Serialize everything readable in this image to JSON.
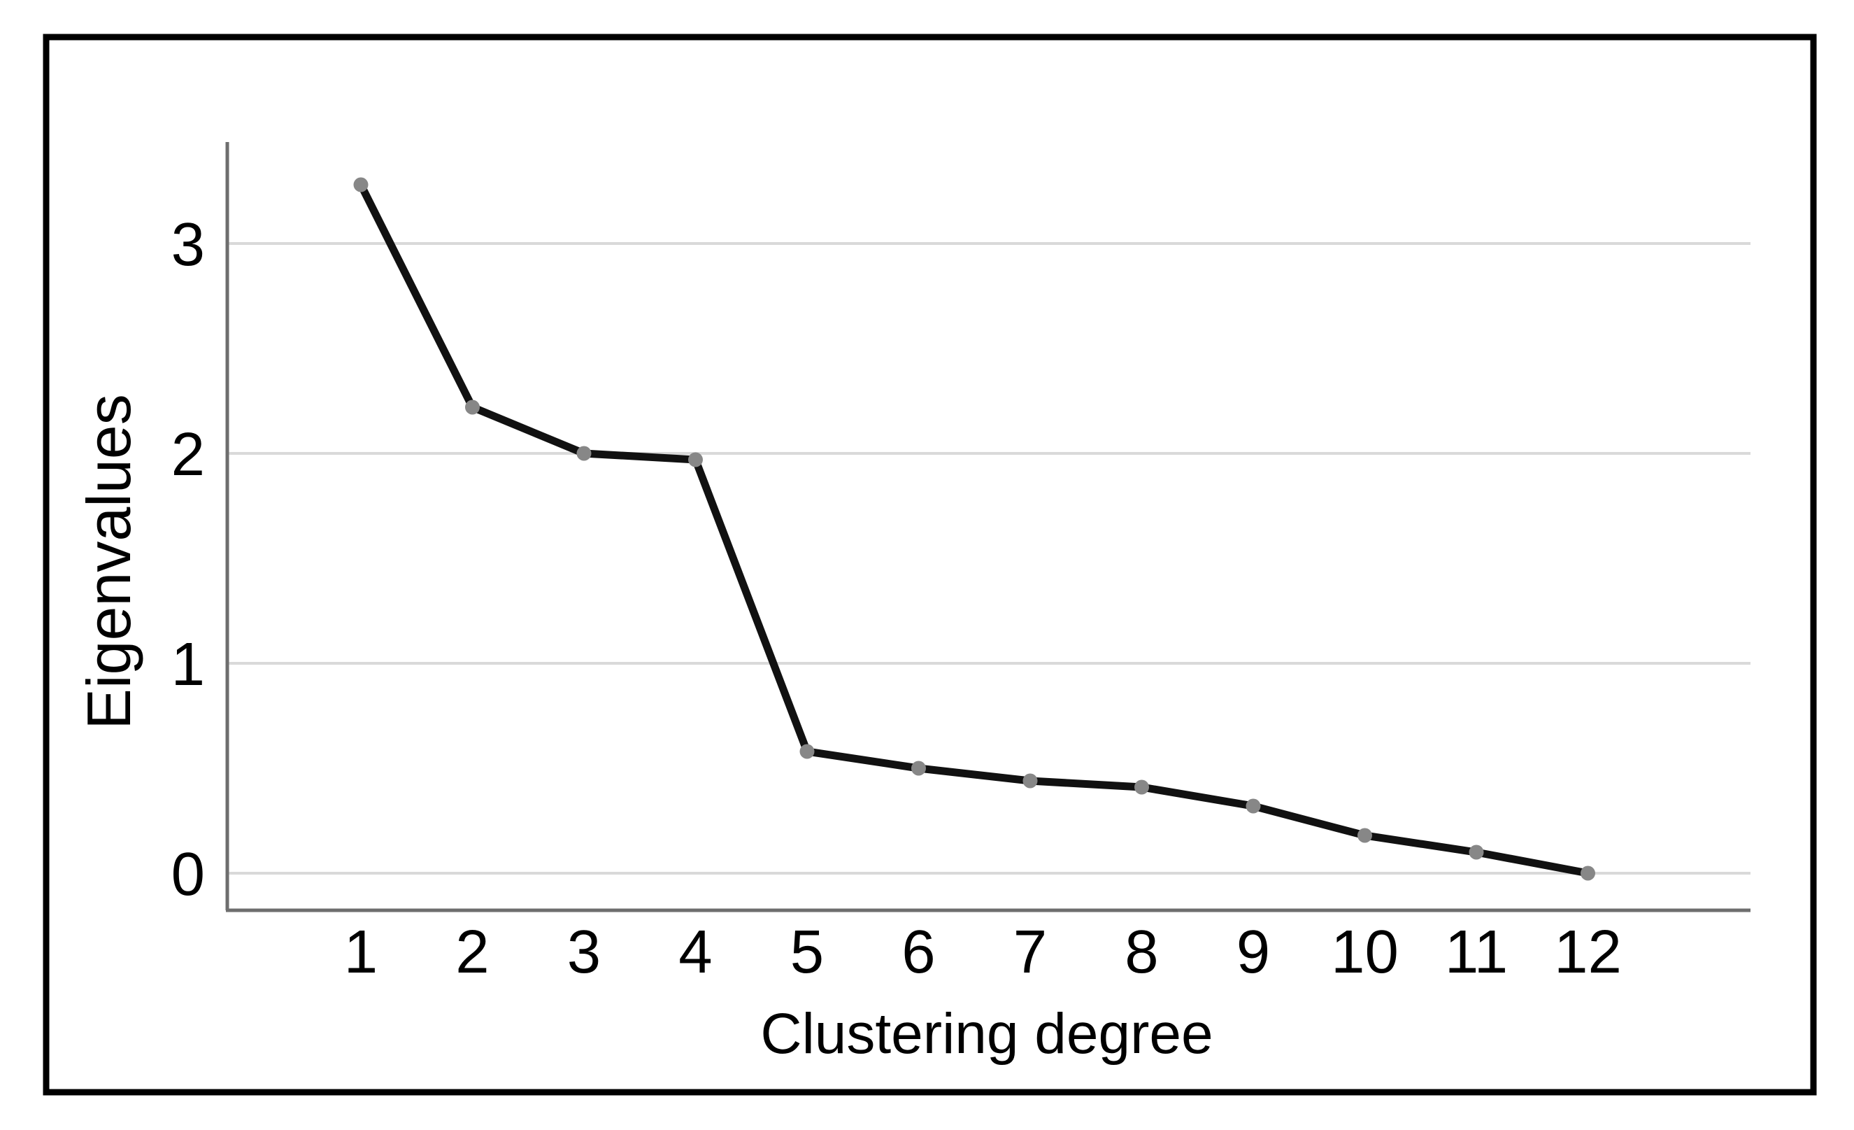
{
  "figure": {
    "background_color": "#ffffff",
    "border_color": "#000000"
  },
  "chart_data": {
    "type": "line",
    "title": "",
    "xlabel": "Clustering degree",
    "ylabel": "Eigenvalues",
    "categories": [
      1,
      2,
      3,
      4,
      5,
      6,
      7,
      8,
      9,
      10,
      11,
      12
    ],
    "series": [
      {
        "name": "Eigenvalues",
        "values": [
          3.28,
          2.22,
          2.0,
          1.97,
          0.58,
          0.5,
          0.44,
          0.41,
          0.32,
          0.18,
          0.1,
          0.0
        ]
      }
    ],
    "yticks": [
      0,
      1,
      2,
      3
    ],
    "ylim": [
      -0.18,
      3.48
    ],
    "xlim": [
      0,
      13.5
    ],
    "grid": true,
    "legend": false,
    "line_color": "#111111",
    "marker_color": "#878787",
    "gridline_color": "#d9d9d9",
    "axis_line_color": "#6e6e6e",
    "text_color": "#000000"
  }
}
